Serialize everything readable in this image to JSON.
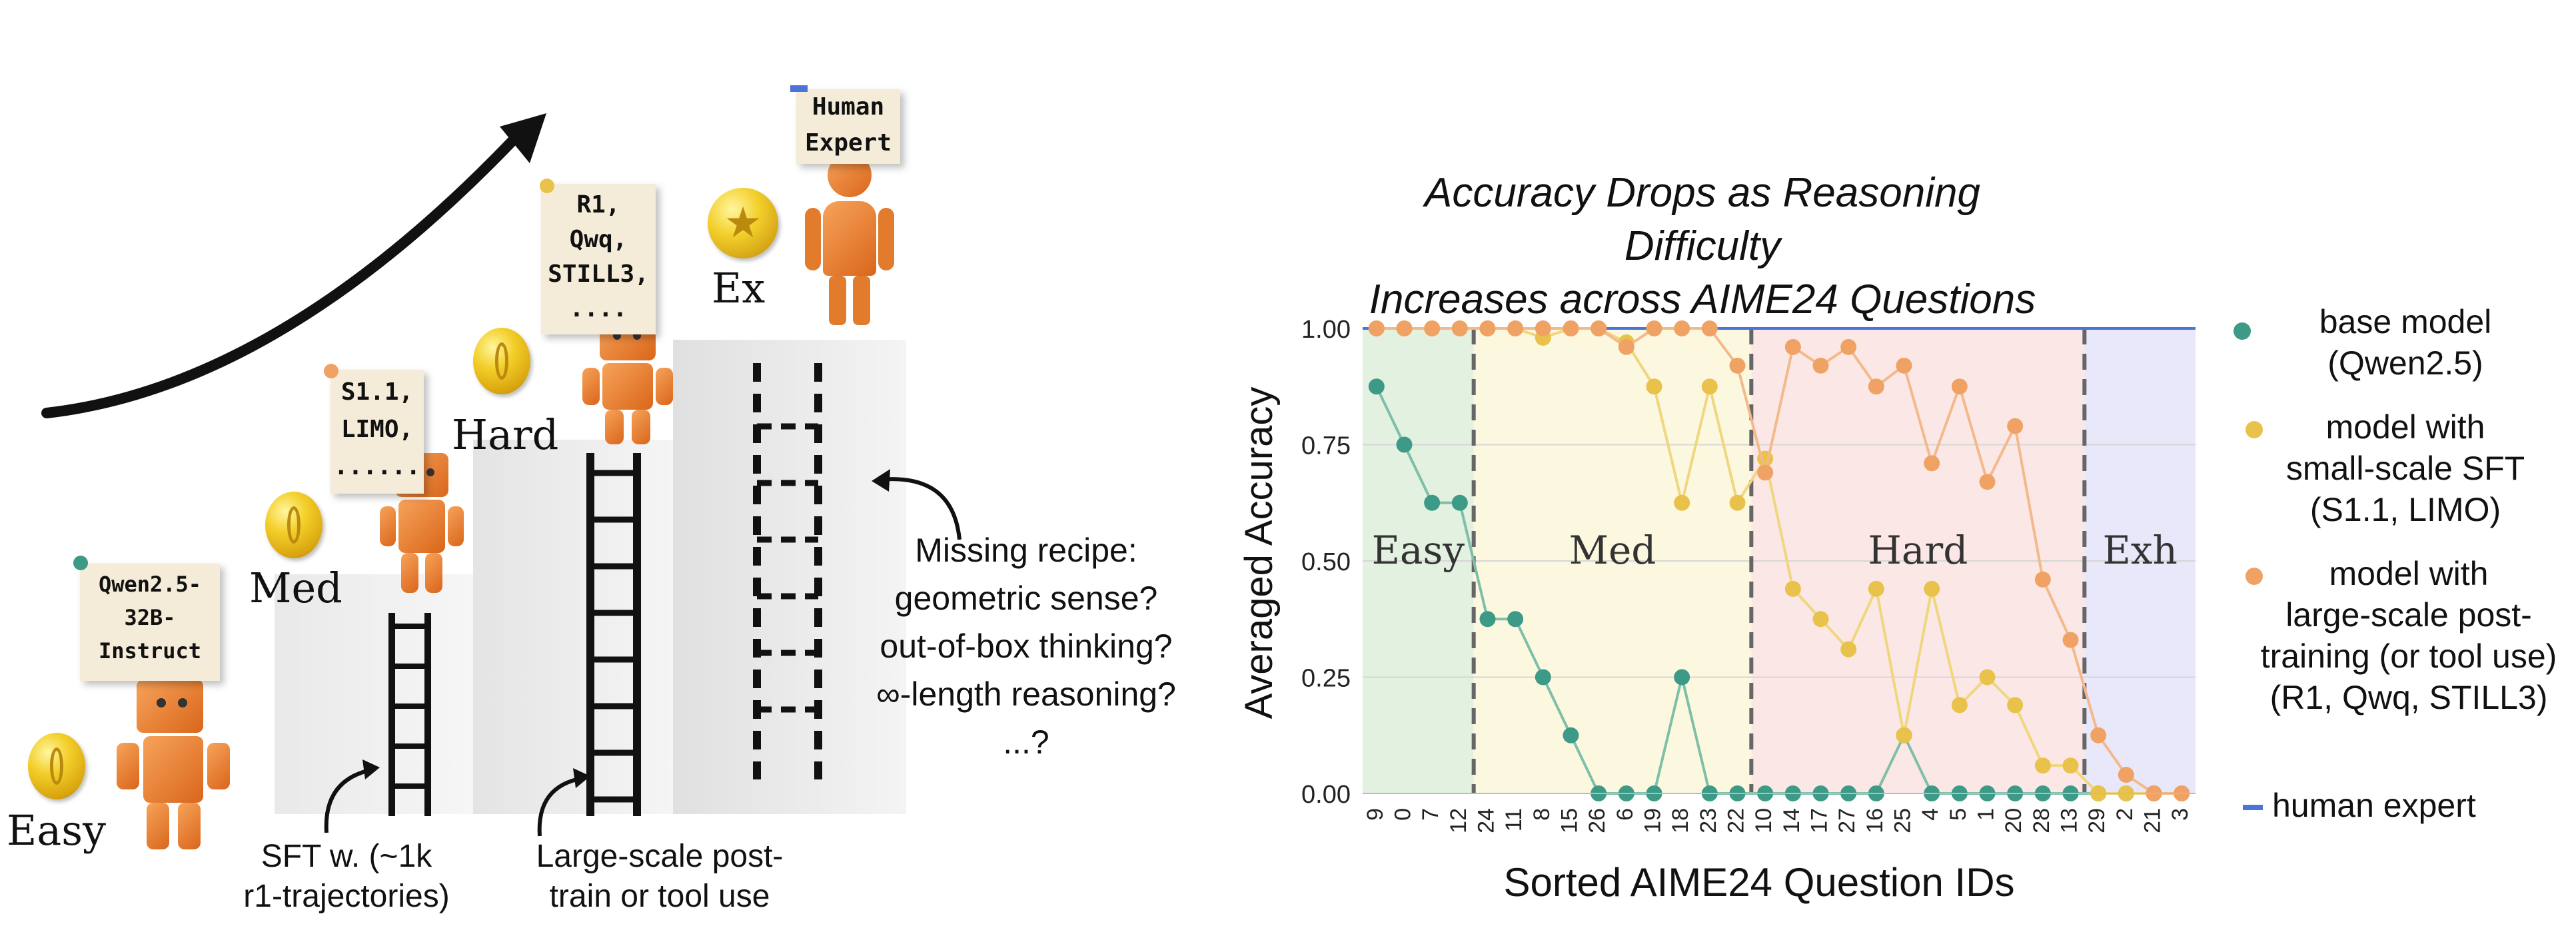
{
  "left_panel": {
    "levels": {
      "easy": "Easy",
      "med": "Med",
      "hard": "Hard",
      "ex": "Ex"
    },
    "notes": {
      "qwen": "Qwen2.5-\n32B-\nInstruct",
      "s1": "S1.1,\nLIMO,\n......",
      "r1": "R1,\nQwq,\nSTILL3,\n....",
      "human": "Human\nExpert"
    },
    "captions": {
      "sft": "SFT w. (~1k\nr1-trajectories)",
      "large": "Large-scale post-\ntrain or tool use"
    },
    "question": "Missing recipe:\ngeometric sense?\nout-of-box thinking?\n∞-length reasoning?\n...?",
    "colors": {
      "note": "#f4ecd8",
      "pin_green": "#3c9a87",
      "pin_orange": "#f0a264",
      "pin_yellow": "#e8c24a",
      "pin_blue": "#4a74d8",
      "robot": "#e8792a"
    }
  },
  "chart_data": {
    "type": "line",
    "title": "Accuracy Drops as Reasoning Difficulty\nIncreases across AIME24 Questions",
    "xlabel": "Sorted AIME24 Question IDs",
    "ylabel": "Averaged Accuracy",
    "ylim": [
      0,
      1
    ],
    "yticks": [
      "0.00",
      "0.25",
      "0.50",
      "0.75",
      "1.00"
    ],
    "grid": true,
    "categories": [
      "9",
      "0",
      "7",
      "12",
      "24",
      "11",
      "8",
      "15",
      "26",
      "6",
      "19",
      "18",
      "23",
      "22",
      "10",
      "14",
      "17",
      "27",
      "16",
      "25",
      "4",
      "5",
      "1",
      "20",
      "28",
      "13",
      "29",
      "2",
      "21",
      "3"
    ],
    "regions": [
      {
        "label": "Easy",
        "from": 0,
        "to": 4,
        "color": "#e3f1e1"
      },
      {
        "label": "Med",
        "from": 4,
        "to": 14,
        "color": "#fbf8df"
      },
      {
        "label": "Hard",
        "from": 14,
        "to": 26,
        "color": "#fbe8e6"
      },
      {
        "label": "Exh",
        "from": 26,
        "to": 30,
        "color": "#e9e8fb"
      }
    ],
    "series": [
      {
        "name": "base model\n(Qwen2.5)",
        "color": "#3c9a87",
        "line": "#7fbfa9",
        "values": [
          0.875,
          0.75,
          0.625,
          0.625,
          0.375,
          0.375,
          0.25,
          0.125,
          0,
          0,
          0,
          0.25,
          0,
          0,
          0,
          0,
          0,
          0,
          0,
          0.125,
          0,
          0,
          0,
          0,
          0,
          0,
          0,
          0,
          0,
          0
        ]
      },
      {
        "name": "model with\nsmall-scale SFT\n(S1.1, LIMO)",
        "color": "#e8c24a",
        "line": "#f0d67e",
        "values": [
          1,
          1,
          1,
          1,
          1,
          1,
          0.98,
          1,
          1,
          0.97,
          0.875,
          0.625,
          0.875,
          0.625,
          0.72,
          0.44,
          0.375,
          0.31,
          0.44,
          0.125,
          0.44,
          0.19,
          0.25,
          0.19,
          0.06,
          0.06,
          0,
          0,
          0,
          0
        ]
      },
      {
        "name": "model with\nlarge-scale post-\ntraining (or tool use)\n(R1, Qwq, STILL3)",
        "color": "#f0a264",
        "line": "#f4b98a",
        "values": [
          1,
          1,
          1,
          1,
          1,
          1,
          1,
          1,
          1,
          0.96,
          1,
          1,
          1,
          0.92,
          0.69,
          0.96,
          0.92,
          0.96,
          0.875,
          0.92,
          0.71,
          0.875,
          0.67,
          0.79,
          0.46,
          0.33,
          0.125,
          0.04,
          0,
          0
        ]
      },
      {
        "name": "human expert",
        "color": "#4a74d8",
        "line": "#4a74d8",
        "values": [
          1,
          1,
          1,
          1,
          1,
          1,
          1,
          1,
          1,
          1,
          1,
          1,
          1,
          1,
          1,
          1,
          1,
          1,
          1,
          1,
          1,
          1,
          1,
          1,
          1,
          1,
          1,
          1,
          1,
          1
        ]
      }
    ],
    "legend_position": "right"
  }
}
